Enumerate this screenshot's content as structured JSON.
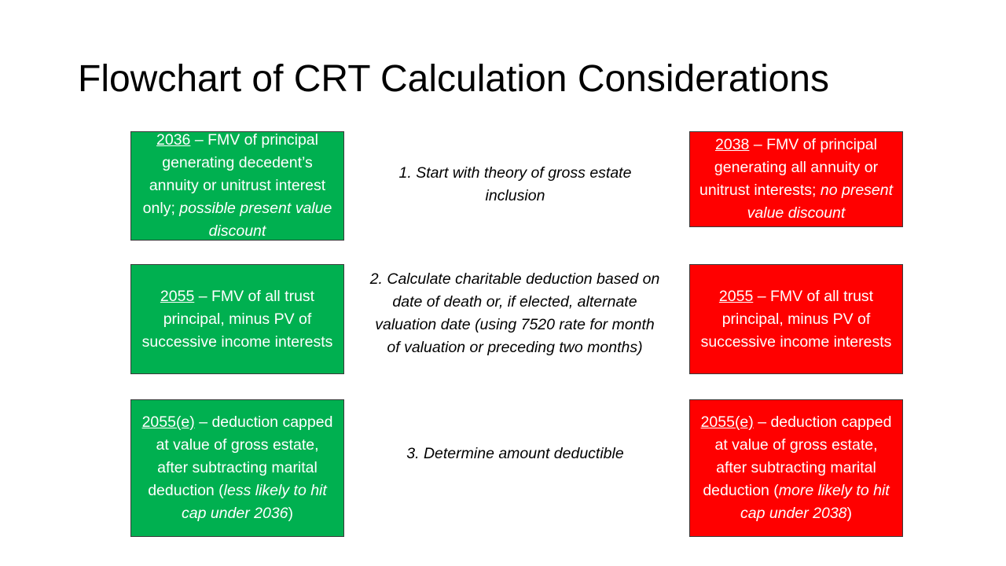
{
  "title": "Flowchart of CRT Calculation Considerations",
  "rows": [
    {
      "left": {
        "code": "2036",
        "text": " – FMV of principal generating decedent’s annuity or unitrust interest only; ",
        "italic": "possible present value discount",
        "tail": ""
      },
      "step": "1. Start with theory of gross estate inclusion",
      "right": {
        "code": "2038",
        "text": " – FMV of principal generating all annuity or unitrust interests; ",
        "italic": "no present value discount",
        "tail": ""
      }
    },
    {
      "left": {
        "code": "2055",
        "text": " – FMV of all trust principal, minus PV of successive income interests",
        "italic": "",
        "tail": ""
      },
      "step": "2. Calculate charitable deduction based on date of death or, if elected, alternate valuation date (using 7520 rate for month of valuation or preceding two months)",
      "right": {
        "code": "2055",
        "text": " – FMV of all trust principal, minus PV of successive income interests",
        "italic": "",
        "tail": ""
      }
    },
    {
      "left": {
        "code": "2055(e)",
        "text": " – deduction capped at value of gross estate, after subtracting marital deduction (",
        "italic": "less likely to hit cap under 2036",
        "tail": ")"
      },
      "step": "3. Determine amount deductible",
      "right": {
        "code": "2055(e)",
        "text": " – deduction capped at value of gross estate, after subtracting marital deduction (",
        "italic": "more likely to hit cap under 2038",
        "tail": ")"
      }
    }
  ],
  "colors": {
    "left_box": "#00b050",
    "right_box": "#ff0000",
    "box_text": "#ffffff"
  }
}
